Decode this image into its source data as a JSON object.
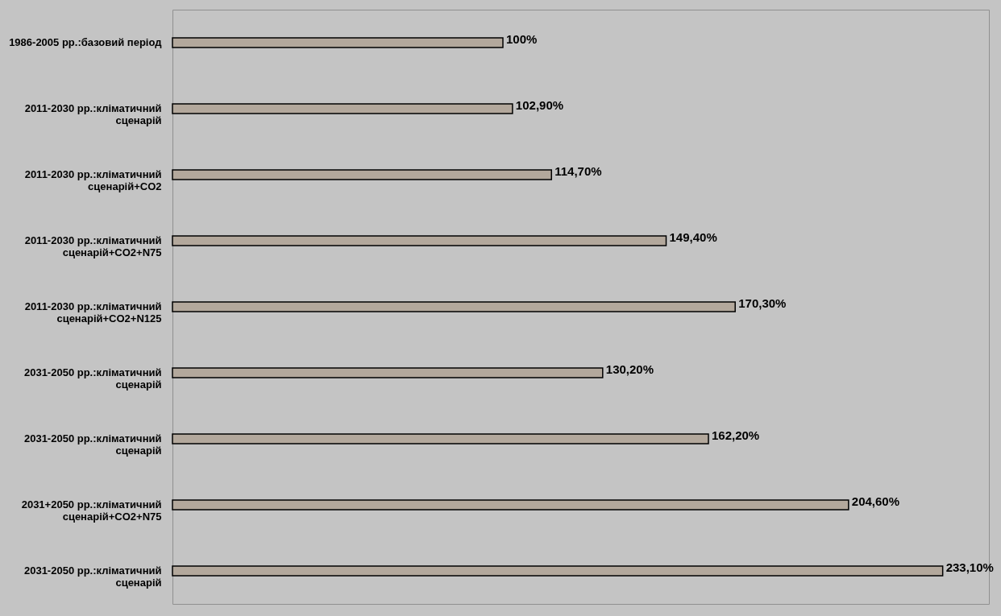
{
  "chart_data": {
    "type": "bar",
    "orientation": "horizontal",
    "categories": [
      "1986-2005 рр.:базовий період",
      "2011-2030 рр.:кліматичний сценарій",
      "2011-2030 рр.:кліматичний сценарій+CO2",
      "2011-2030 рр.:кліматичний сценарій+CO2+N75",
      "2011-2030 рр.:кліматичний сценарій+CO2+N125",
      "2031-2050 рр.:кліматичний сценарій",
      "2031-2050 рр.:кліматичний сценарій",
      "2031+2050 рр.:кліматичний сценарій+CO2+N75",
      "2031-2050 рр.:кліматичний сценарій"
    ],
    "values": [
      100,
      102.9,
      114.7,
      149.4,
      170.3,
      130.2,
      162.2,
      204.6,
      233.1
    ],
    "value_labels": [
      "100%",
      "102,90%",
      "114,70%",
      "149,40%",
      "170,30%",
      "130,20%",
      "162,20%",
      "204,60%",
      "233,10%"
    ],
    "color": "#b3a89c"
  }
}
